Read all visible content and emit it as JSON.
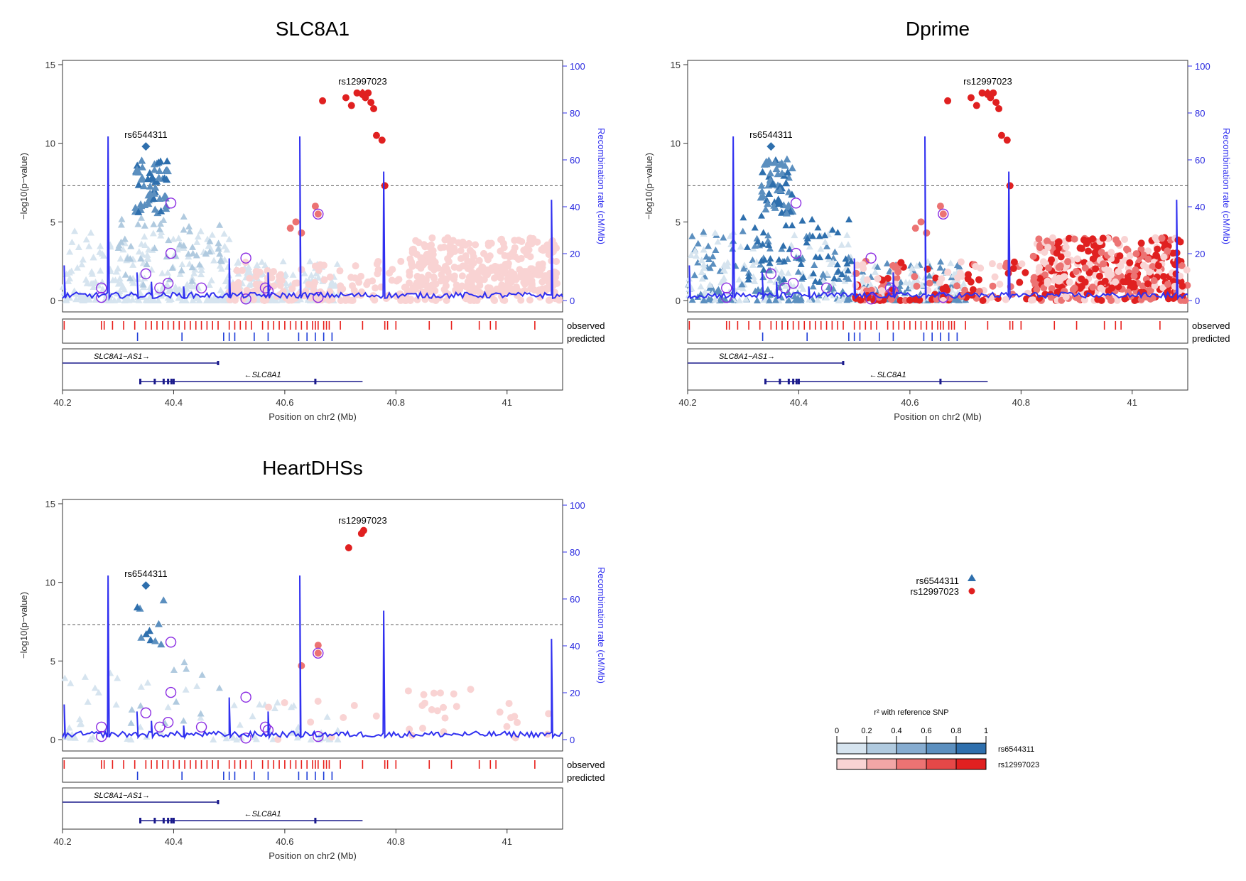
{
  "colors": {
    "recomb": "#3030f0",
    "blue_scale": [
      "#d6e4ef",
      "#b0cadf",
      "#86acd0",
      "#5b8fbf",
      "#2e6fad"
    ],
    "red_scale": [
      "#f9d3d3",
      "#f2a6a6",
      "#ec7373",
      "#e54848",
      "#e02020"
    ],
    "observed": "#e8201c",
    "predicted": "#1c3cd8",
    "gene": "#1a1a8c",
    "functional": "#8a2be2"
  },
  "chart_data": [
    {
      "type": "scatter",
      "title": "SLC8A1",
      "xlabel": "Position on chr2 (Mb)",
      "ylabel": "−log10(p−value)",
      "y2label": "Recombination rate (cM/Mb)",
      "xlim": [
        40.2,
        41.1
      ],
      "ylim": [
        0,
        15
      ],
      "y2lim": [
        0,
        100
      ],
      "x_ticks": [
        "40.2",
        "40.4",
        "40.6",
        "40.8",
        "41"
      ],
      "y_ticks": [
        "0",
        "5",
        "10",
        "15"
      ],
      "y2_ticks": [
        "0",
        "20",
        "40",
        "60",
        "80",
        "100"
      ],
      "significance_line": 7.3,
      "labels": [
        {
          "text": "rs6544311",
          "x": 40.35,
          "y": 9.8
        },
        {
          "text": "rs12997023",
          "x": 40.74,
          "y": 13.2
        }
      ],
      "tracks": [
        "observed",
        "predicted"
      ],
      "genes": [
        "SLC8A1−AS1→",
        "←SLC8A1"
      ],
      "lead_snps": [
        {
          "name": "rs6544311",
          "x": 40.35,
          "y": 9.8
        },
        {
          "name": "rs12997023",
          "x": 40.74,
          "y": 13.2
        }
      ]
    },
    {
      "type": "scatter",
      "title": "Dprime",
      "xlabel": "Position on chr2 (Mb)",
      "ylabel": "−log10(p−value)",
      "y2label": "Recombination rate (cM/Mb)",
      "xlim": [
        40.2,
        41.1
      ],
      "ylim": [
        0,
        15
      ],
      "y2lim": [
        0,
        100
      ],
      "x_ticks": [
        "40.2",
        "40.4",
        "40.6",
        "40.8",
        "41"
      ],
      "y_ticks": [
        "0",
        "5",
        "10",
        "15"
      ],
      "y2_ticks": [
        "0",
        "20",
        "40",
        "60",
        "80",
        "100"
      ],
      "significance_line": 7.3,
      "labels": [
        {
          "text": "rs6544311",
          "x": 40.35,
          "y": 9.8
        },
        {
          "text": "rs12997023",
          "x": 40.74,
          "y": 13.2
        }
      ],
      "tracks": [
        "observed",
        "predicted"
      ],
      "genes": [
        "SLC8A1−AS1→",
        "←SLC8A1"
      ],
      "lead_snps": [
        {
          "name": "rs6544311",
          "x": 40.35,
          "y": 9.8
        },
        {
          "name": "rs12997023",
          "x": 40.74,
          "y": 13.2
        }
      ]
    },
    {
      "type": "scatter",
      "title": "HeartDHSs",
      "xlabel": "Position on chr2 (Mb)",
      "ylabel": "−log10(p−value)",
      "y2label": "Recombination rate (cM/Mb)",
      "xlim": [
        40.2,
        41.1
      ],
      "ylim": [
        0,
        15
      ],
      "y2lim": [
        0,
        100
      ],
      "x_ticks": [
        "40.2",
        "40.4",
        "40.6",
        "40.8",
        "41"
      ],
      "y_ticks": [
        "0",
        "5",
        "10",
        "15"
      ],
      "y2_ticks": [
        "0",
        "20",
        "40",
        "60",
        "80",
        "100"
      ],
      "significance_line": 7.3,
      "labels": [
        {
          "text": "rs6544311",
          "x": 40.35,
          "y": 9.8
        },
        {
          "text": "rs12997023",
          "x": 40.74,
          "y": 13.2
        }
      ],
      "tracks": [
        "observed",
        "predicted"
      ],
      "genes": [
        "SLC8A1−AS1→",
        "←SLC8A1"
      ],
      "lead_snps": [
        {
          "name": "rs6544311",
          "x": 40.35,
          "y": 9.8
        },
        {
          "name": "rs12997023",
          "x": 40.74,
          "y": 13.2
        }
      ]
    }
  ],
  "legend": {
    "series": [
      {
        "name": "rs6544311",
        "shape": "triangle"
      },
      {
        "name": "rs12997023",
        "shape": "circle"
      }
    ],
    "r2_title": "r² with reference SNP",
    "r2_ticks": [
      "0",
      "0.2",
      "0.4",
      "0.6",
      "0.8",
      "1"
    ],
    "rows": [
      "rs6544311",
      "rs12997023"
    ]
  }
}
